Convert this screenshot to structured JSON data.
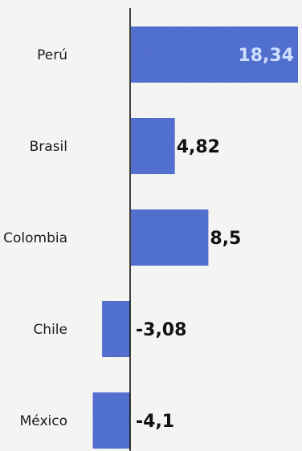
{
  "chart_data": {
    "type": "bar",
    "orientation": "horizontal",
    "categories": [
      "Perú",
      "Brasil",
      "Colombia",
      "Chile",
      "México"
    ],
    "values": [
      18.34,
      4.82,
      8.5,
      -3.08,
      -4.1
    ],
    "value_labels": [
      "18,34",
      "4,82",
      "8,5",
      "-3,08",
      "-4,1"
    ],
    "title": "",
    "xlabel": "",
    "ylabel": "",
    "grid": false,
    "legend": "none"
  },
  "colors": {
    "bar": "#2f5fd0",
    "axis": "#111111",
    "label_inside": "#cfe0ff",
    "label_outside": "#111111"
  }
}
